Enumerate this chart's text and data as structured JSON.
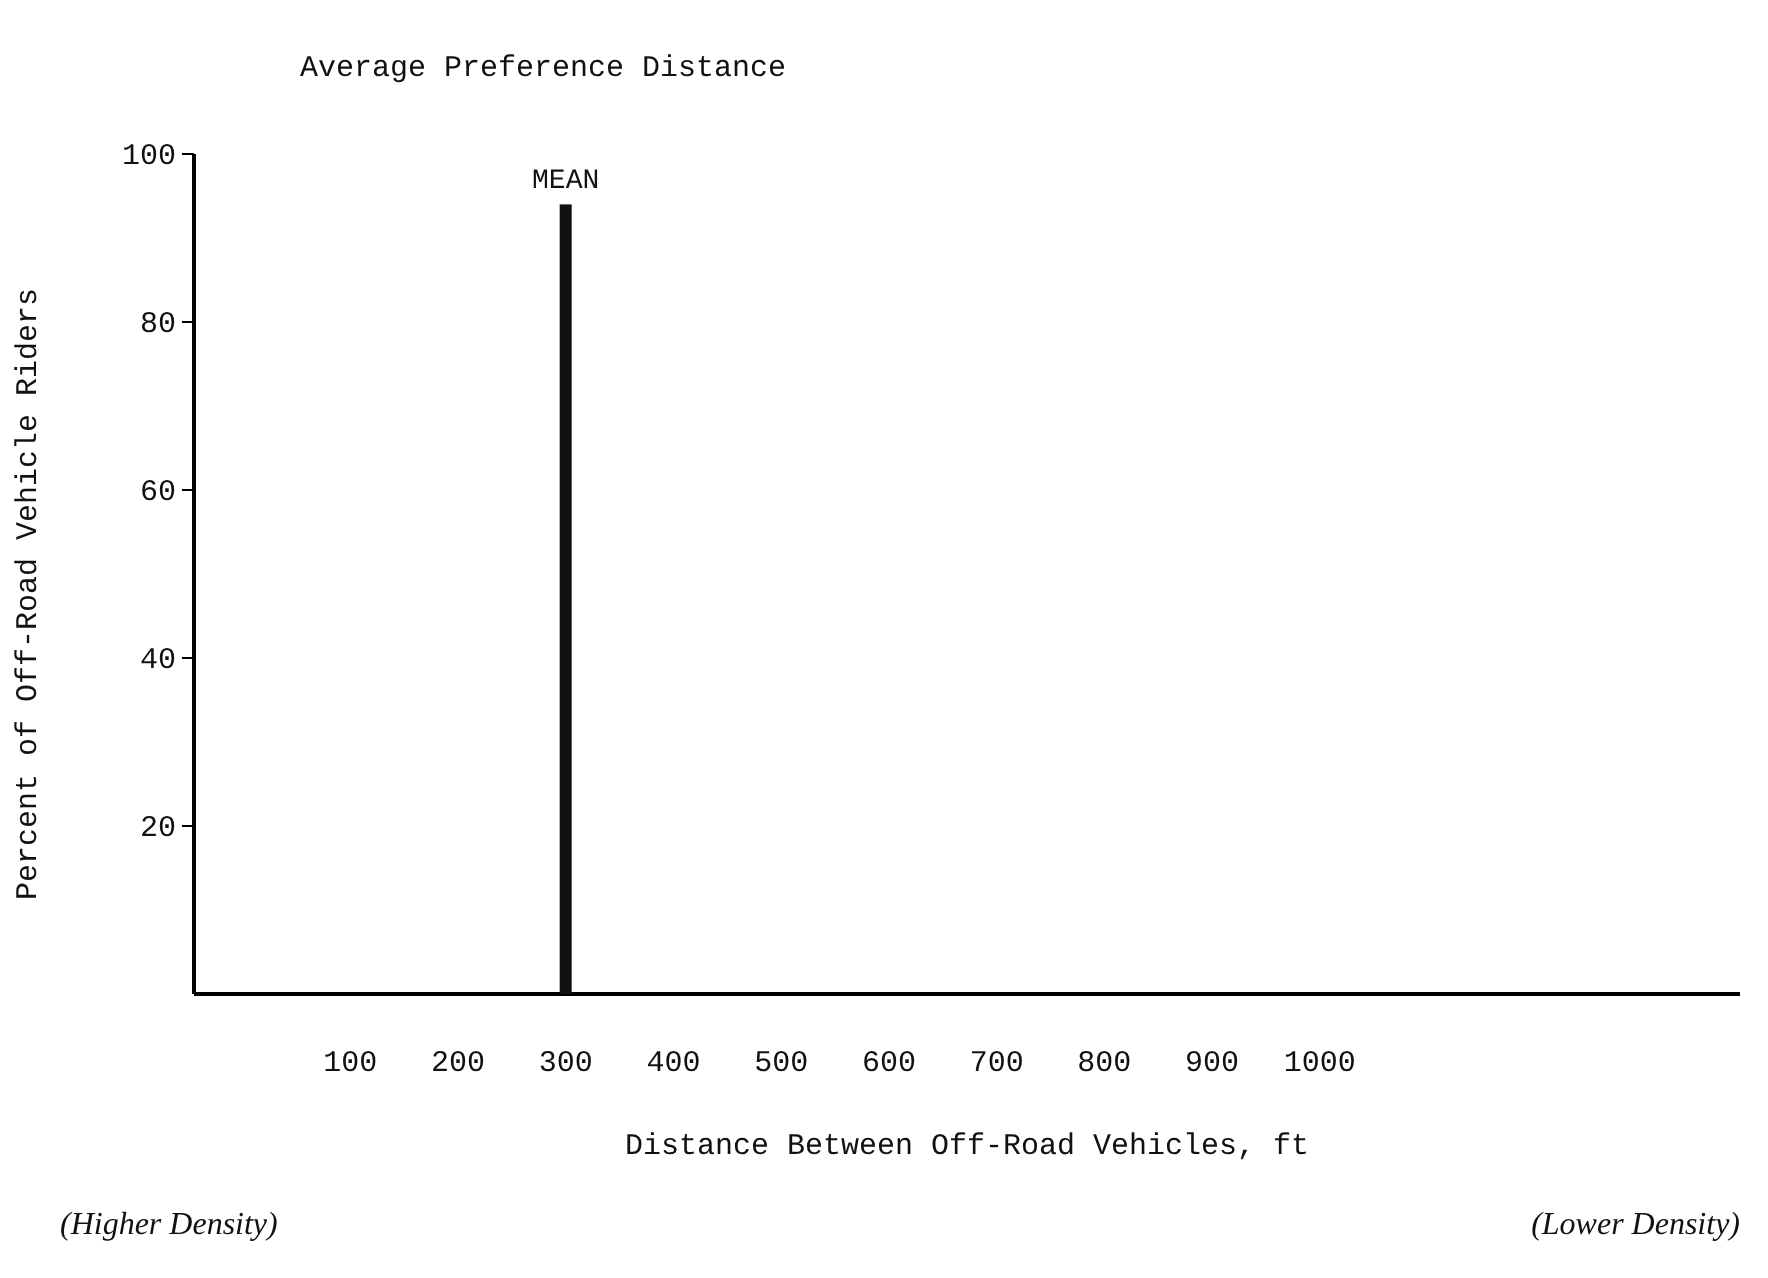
{
  "chart_data": {
    "type": "bar",
    "title": "Average Preference Distance",
    "xlabel": "Distance Between Off-Road Vehicles, ft",
    "ylabel": "Percent of Off-Road Vehicle Riders",
    "x": [
      300
    ],
    "values": [
      94
    ],
    "color": "#111111",
    "xlim": [
      -45,
      1390
    ],
    "xticks": [
      100,
      200,
      300,
      400,
      500,
      600,
      700,
      800,
      900,
      1000
    ],
    "ylim": [
      0,
      100
    ],
    "yticks": [
      20,
      40,
      60,
      80,
      100
    ],
    "annotations": [
      {
        "text": "MEAN",
        "x": 300,
        "y": 94
      },
      "(Higher Density)",
      "(Lower Density)"
    ]
  }
}
